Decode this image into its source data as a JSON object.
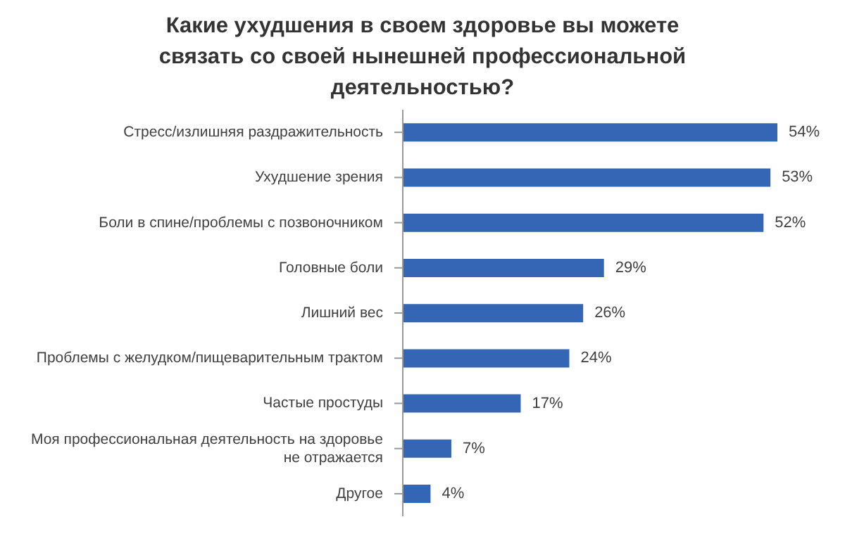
{
  "chart_data": {
    "type": "bar",
    "orientation": "horizontal",
    "relative": false,
    "title": "Какие ухудшения в своем здоровье вы можете связать со своей нынешней профессиональной деятельностью?",
    "categories": [
      "Стресс/излишняя раздражительность",
      "Ухудшение зрения",
      "Боли в спине/проблемы с позвоночником",
      "Головные боли",
      "Лишний вес",
      "Проблемы с желудком/пищеварительным трактом",
      "Частые простуды",
      "Моя профессиональная деятельность на здоровье не отражается",
      "Другое"
    ],
    "values": [
      54,
      53,
      52,
      29,
      26,
      24,
      17,
      7,
      4
    ],
    "value_labels": [
      "54%",
      "53%",
      "52%",
      "29%",
      "26%",
      "24%",
      "17%",
      "7%",
      "4%"
    ],
    "color": "#3466b5",
    "grid": false,
    "legend": false
  }
}
